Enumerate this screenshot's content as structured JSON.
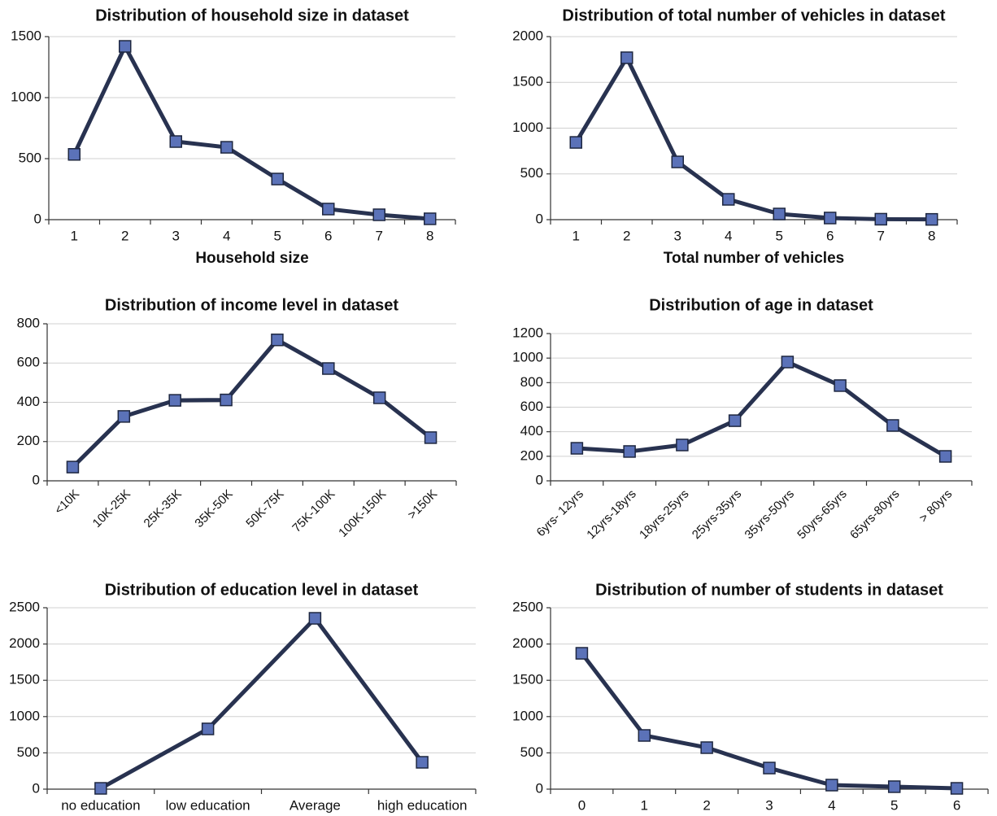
{
  "chart_data": [
    {
      "type": "line",
      "title": "Distribution of household size in dataset",
      "x_label": "Household size",
      "categories": [
        "1",
        "2",
        "3",
        "4",
        "5",
        "6",
        "7",
        "8"
      ],
      "values": [
        535,
        1420,
        640,
        593,
        333,
        87,
        40,
        7
      ],
      "color": "#283250",
      "marker_color": "#5b72b8",
      "ylim": [
        0,
        1500
      ],
      "yticks": [
        0,
        500,
        1000,
        1500
      ],
      "grid": true
    },
    {
      "type": "line",
      "title": "Distribution of total number of vehicles in dataset",
      "x_label": "Total number of vehicles",
      "categories": [
        "1",
        "2",
        "3",
        "4",
        "5",
        "6",
        "7",
        "8"
      ],
      "values": [
        844,
        1769,
        631,
        222,
        62,
        18,
        5,
        3
      ],
      "color": "#283250",
      "marker_color": "#5b72b8",
      "ylim": [
        0,
        2000
      ],
      "yticks": [
        0,
        500,
        1000,
        1500,
        2000
      ],
      "grid": true
    },
    {
      "type": "line",
      "title": "Distribution of income level in dataset",
      "categories": [
        "<10K",
        "10K-25K",
        "25K-35K",
        "35K-50K",
        "50K-75K",
        "75K-100K",
        "100K-150K",
        ">150K"
      ],
      "values": [
        70,
        328,
        410,
        412,
        718,
        572,
        423,
        220
      ],
      "color": "#283250",
      "marker_color": "#5b72b8",
      "ylim": [
        0,
        800
      ],
      "yticks": [
        0,
        200,
        400,
        600,
        800
      ],
      "grid": true
    },
    {
      "type": "line",
      "title": "Distribution of age in dataset",
      "categories": [
        "6yrs- 12yrs",
        "12yrs-18yrs",
        "18yrs-25yrs",
        "25yrs-35yrs",
        "35yrs-50yrs",
        "50yrs-65yrs",
        "65yrs-80yrs",
        "> 80yrs"
      ],
      "values": [
        265,
        239,
        292,
        490,
        968,
        776,
        451,
        199
      ],
      "color": "#283250",
      "marker_color": "#5b72b8",
      "ylim": [
        0,
        1200
      ],
      "yticks": [
        0,
        200,
        400,
        600,
        800,
        1000,
        1200
      ],
      "grid": true
    },
    {
      "type": "line",
      "title": "Distribution of education level in dataset",
      "categories": [
        "no education",
        "low education",
        "Average",
        "high education"
      ],
      "values": [
        11,
        830,
        2354,
        370
      ],
      "color": "#283250",
      "marker_color": "#5b72b8",
      "ylim": [
        0,
        2500
      ],
      "yticks": [
        0,
        500,
        1000,
        1500,
        2000,
        2500
      ],
      "grid": true
    },
    {
      "type": "line",
      "title": "Distribution of number of students in dataset",
      "categories": [
        "0",
        "1",
        "2",
        "3",
        "4",
        "5",
        "6"
      ],
      "values": [
        1872,
        740,
        572,
        291,
        56,
        34,
        11
      ],
      "color": "#283250",
      "marker_color": "#5b72b8",
      "ylim": [
        0,
        2500
      ],
      "yticks": [
        0,
        500,
        1000,
        1500,
        2000,
        2500
      ],
      "grid": true
    }
  ]
}
